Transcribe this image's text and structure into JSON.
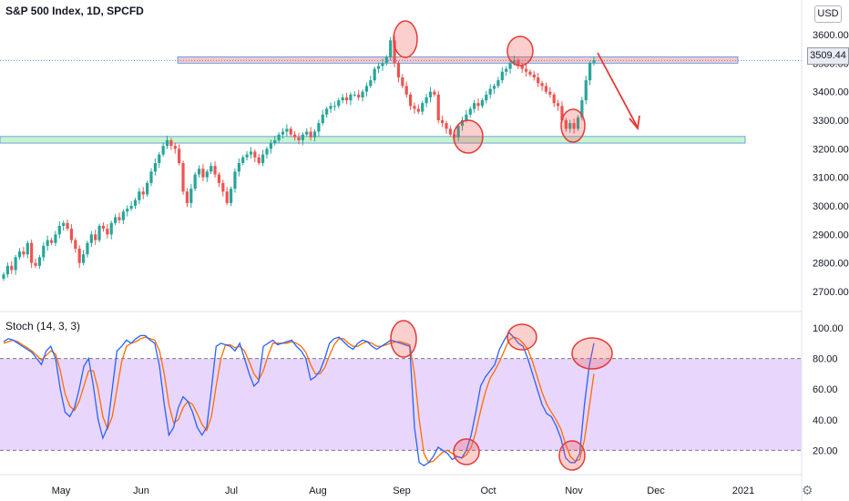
{
  "header": {
    "title": "S&P 500 Index, 1D, SPCFD",
    "currency": "USD",
    "last_price": "3509.44",
    "settings_icon": "gear-icon"
  },
  "colors": {
    "up": "#26a69a",
    "down": "#ef5350",
    "stoch_k": "#2962ff",
    "stoch_d": "#ff6d00",
    "stoch_band": "#e1c8fb",
    "resistance_fill": "#f9c8c8",
    "support_fill": "#c8f3cc",
    "annotation": "#e53935"
  },
  "chart_data": [
    {
      "type": "candlestick",
      "title": "S&P 500 Index, 1D, SPCFD",
      "x_ticks": [
        "May",
        "Jun",
        "Jul",
        "Aug",
        "Sep",
        "Oct",
        "Nov",
        "Dec",
        "2021"
      ],
      "y_ticks": [
        2700,
        2800,
        2900,
        3000,
        3100,
        3200,
        3300,
        3400,
        3500,
        3600
      ],
      "ylim": [
        2660,
        3630
      ],
      "last_price": 3509.44,
      "resistance_zone": [
        3500,
        3522
      ],
      "support_zone": [
        3220,
        3243
      ],
      "close_approx": [
        2760,
        2790,
        2775,
        2820,
        2840,
        2830,
        2870,
        2800,
        2790,
        2820,
        2860,
        2880,
        2870,
        2900,
        2930,
        2940,
        2920,
        2880,
        2850,
        2800,
        2830,
        2870,
        2900,
        2880,
        2930,
        2920,
        2900,
        2940,
        2960,
        2950,
        2980,
        2990,
        3000,
        3020,
        3050,
        3040,
        3080,
        3120,
        3150,
        3180,
        3210,
        3230,
        3210,
        3200,
        3150,
        3050,
        3010,
        3060,
        3110,
        3130,
        3100,
        3120,
        3140,
        3110,
        3080,
        3050,
        3010,
        3060,
        3120,
        3150,
        3170,
        3180,
        3190,
        3170,
        3150,
        3180,
        3200,
        3220,
        3230,
        3250,
        3260,
        3270,
        3250,
        3240,
        3230,
        3250,
        3260,
        3240,
        3260,
        3290,
        3320,
        3340,
        3350,
        3350,
        3370,
        3380,
        3370,
        3390,
        3390,
        3380,
        3400,
        3420,
        3440,
        3480,
        3490,
        3500,
        3520,
        3580,
        3500,
        3450,
        3420,
        3390,
        3350,
        3340,
        3330,
        3360,
        3380,
        3400,
        3390,
        3300,
        3290,
        3270,
        3250,
        3240,
        3280,
        3300,
        3320,
        3340,
        3360,
        3350,
        3370,
        3390,
        3410,
        3420,
        3440,
        3470,
        3480,
        3500,
        3510,
        3490,
        3480,
        3470,
        3460,
        3450,
        3430,
        3420,
        3400,
        3390,
        3360,
        3350,
        3300,
        3270,
        3290,
        3270,
        3310,
        3370,
        3440,
        3500,
        3510
      ],
      "ohlc_note": "Daily S&P 500 candles from late April to early November 2020"
    },
    {
      "type": "line",
      "title": "Stoch (14, 3, 3)",
      "y_ticks": [
        20,
        40,
        60,
        80,
        100
      ],
      "ylim": [
        6,
        106
      ],
      "overbought": 80,
      "oversold": 20,
      "series": [
        {
          "name": "%K",
          "values": [
            91,
            93,
            92,
            90,
            88,
            86,
            84,
            80,
            76,
            85,
            88,
            80,
            60,
            45,
            42,
            48,
            60,
            75,
            80,
            62,
            40,
            28,
            35,
            60,
            85,
            88,
            92,
            90,
            93,
            95,
            95,
            92,
            90,
            75,
            50,
            30,
            35,
            48,
            55,
            52,
            45,
            35,
            30,
            35,
            60,
            88,
            90,
            89,
            88,
            85,
            90,
            80,
            70,
            62,
            65,
            88,
            90,
            92,
            89,
            90,
            91,
            92,
            88,
            85,
            80,
            66,
            68,
            72,
            80,
            90,
            93,
            94,
            91,
            88,
            86,
            90,
            92,
            91,
            88,
            86,
            88,
            90,
            92,
            91,
            90,
            89,
            88,
            35,
            12,
            10,
            12,
            16,
            22,
            20,
            18,
            14,
            16,
            15,
            20,
            30,
            45,
            62,
            68,
            72,
            76,
            86,
            92,
            97,
            94,
            90,
            88,
            80,
            70,
            60,
            50,
            44,
            42,
            36,
            28,
            15,
            12,
            12,
            18,
            50,
            75,
            90
          ]
        },
        {
          "name": "%D",
          "values": [
            90,
            91,
            92,
            91,
            89,
            87,
            85,
            82,
            79,
            82,
            85,
            83,
            72,
            57,
            49,
            46,
            52,
            62,
            72,
            72,
            60,
            42,
            34,
            42,
            60,
            78,
            88,
            90,
            91,
            93,
            94,
            93,
            92,
            85,
            70,
            50,
            38,
            40,
            48,
            52,
            50,
            44,
            37,
            33,
            42,
            62,
            80,
            89,
            89,
            87,
            88,
            85,
            78,
            70,
            66,
            72,
            82,
            90,
            90,
            90,
            90,
            91,
            90,
            88,
            84,
            76,
            70,
            70,
            74,
            82,
            89,
            93,
            93,
            90,
            88,
            88,
            90,
            91,
            90,
            88,
            88,
            89,
            90,
            91,
            91,
            90,
            89,
            70,
            40,
            18,
            12,
            13,
            16,
            19,
            20,
            18,
            16,
            15,
            17,
            22,
            32,
            46,
            58,
            67,
            72,
            78,
            85,
            92,
            94,
            93,
            90,
            86,
            78,
            68,
            58,
            50,
            45,
            40,
            34,
            24,
            16,
            13,
            14,
            27,
            48,
            70
          ]
        }
      ]
    }
  ],
  "annotations": {
    "circles_count": 8,
    "arrow": "down-arrow from last price toward support"
  }
}
